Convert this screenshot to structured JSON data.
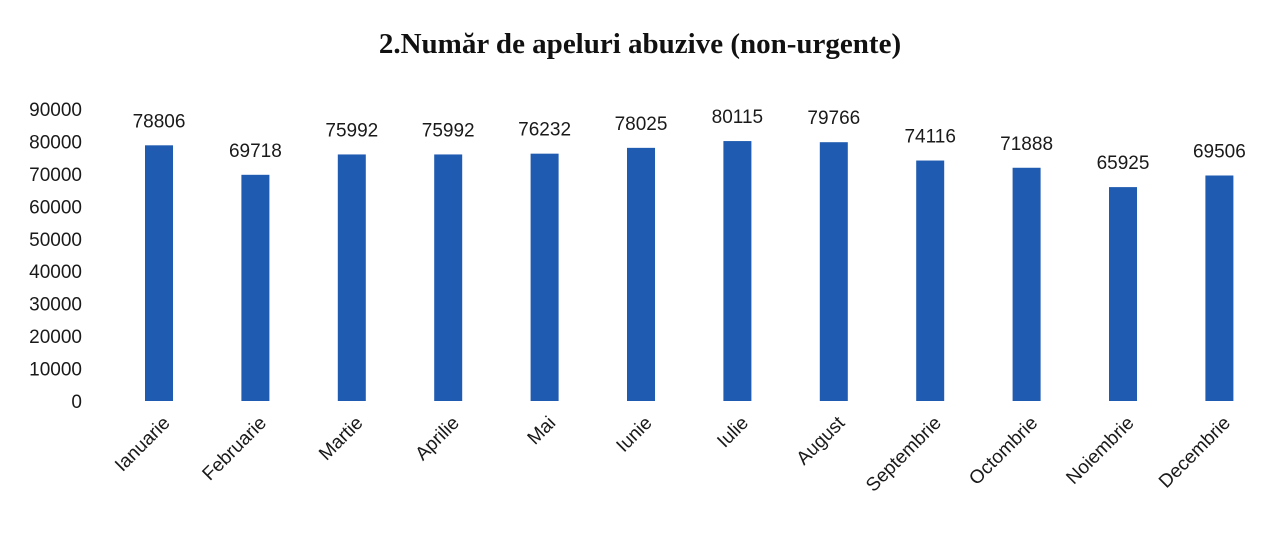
{
  "chart_data": {
    "type": "bar",
    "title": "2.Număr de apeluri abuzive (non-urgente)",
    "xlabel": "",
    "ylabel": "",
    "categories": [
      "Ianuarie",
      "Februarie",
      "Martie",
      "Aprilie",
      "Mai",
      "Iunie",
      "Iulie",
      "August",
      "Septembrie",
      "Octombrie",
      "Noiembrie",
      "Decembrie"
    ],
    "values": [
      78806,
      69718,
      75992,
      75992,
      76232,
      78025,
      80115,
      79766,
      74116,
      71888,
      65925,
      69506
    ],
    "data_labels": [
      "78806",
      "69718",
      "75992",
      "75992",
      "76232",
      "78025",
      "80115",
      "79766",
      "74116",
      "71888",
      "65925",
      "69506"
    ],
    "ylim": [
      0,
      90000
    ],
    "yticks": [
      "0",
      "10000",
      "20000",
      "30000",
      "40000",
      "50000",
      "60000",
      "70000",
      "80000",
      "90000"
    ],
    "bar_color": "#1f5bb0",
    "grid": false,
    "legend": "none"
  }
}
